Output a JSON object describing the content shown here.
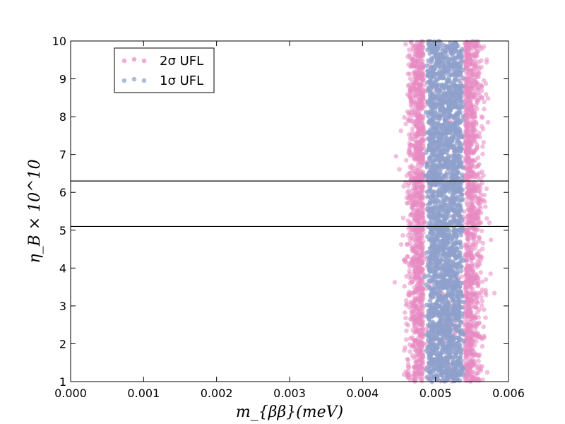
{
  "chart_data": {
    "type": "scatter",
    "title": "",
    "xlabel": "m_{ββ}(meV)",
    "ylabel": "η_B × 10^10",
    "xlim": [
      0.0,
      0.006
    ],
    "ylim": [
      1,
      10
    ],
    "x_ticks": [
      "0.000",
      "0.001",
      "0.002",
      "0.003",
      "0.004",
      "0.005",
      "0.006"
    ],
    "y_ticks": [
      "1",
      "2",
      "3",
      "4",
      "5",
      "6",
      "7",
      "8",
      "9",
      "10"
    ],
    "grid": false,
    "legend_position": "top-left",
    "horizontal_lines": [
      {
        "y": 6.3
      },
      {
        "y": 5.1
      }
    ],
    "series": [
      {
        "name": "2σ UFL",
        "color": "#e78ac3",
        "x_range": [
          0.00465,
          0.0056
        ],
        "y_range": [
          1,
          10
        ],
        "description_values": {
          "x_center": 0.00512,
          "x_half_width": 0.00046
        }
      },
      {
        "name": "1σ UFL",
        "color": "#8da0cb",
        "x_range": [
          0.0049,
          0.00536
        ],
        "y_range": [
          1,
          10
        ],
        "description_values": {
          "x_center": 0.00513,
          "x_half_width": 0.00023
        }
      }
    ]
  }
}
